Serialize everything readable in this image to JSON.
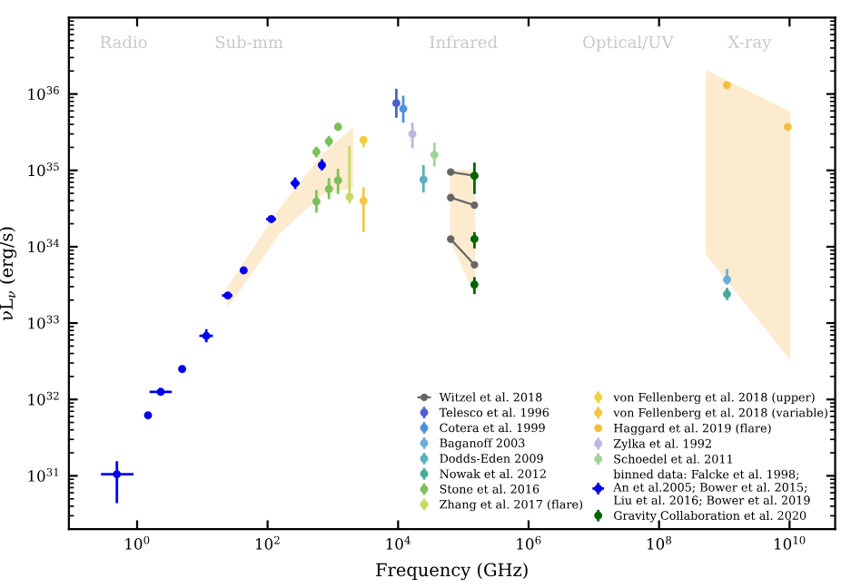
{
  "chart_data": {
    "type": "scatter",
    "xlabel": "Frequency (GHz)",
    "ylabel": "νL$_{ν}$ (erg/s)",
    "log": "xy",
    "marker": "circle",
    "legend": "bottom right",
    "grid": false,
    "xlim": [
      0.09,
      50000000000
    ],
    "ylim": [
      2e+30,
      1e+37
    ],
    "xticks": [
      {
        "value": 1,
        "label": "10$^{0}$"
      },
      {
        "value": 100,
        "label": "10$^{2}$"
      },
      {
        "value": 10000,
        "label": "10$^{4}$"
      },
      {
        "value": 1000000,
        "label": "10$^{6}$"
      },
      {
        "value": 100000000,
        "label": "10$^{8}$"
      },
      {
        "value": 10000000000,
        "label": "10$^{10}$"
      }
    ],
    "yticks": [
      {
        "value": 1e+31,
        "label": "10$^{31}$"
      },
      {
        "value": 1e+32,
        "label": "10$^{32}$"
      },
      {
        "value": 1e+33,
        "label": "10$^{33}$"
      },
      {
        "value": 1e+34,
        "label": "10$^{34}$"
      },
      {
        "value": 1e+35,
        "label": "10$^{35}$"
      },
      {
        "value": 1e+36,
        "label": "10$^{36}$"
      }
    ],
    "annotations": [
      "Radio",
      "Sub-mm",
      "Infrared",
      "Optical/UV",
      "X-ray"
    ],
    "series": [
      {
        "type": "area",
        "color": "#fdebd0",
        "x": [
          25,
          150,
          700,
          2000
        ],
        "values": [
          null,
          null,
          null,
          null
        ],
        "lower": [
          1.7e+33,
          1.5e+34,
          5e+34,
          6e+34
        ],
        "upper": [
          3e+33,
          3e+34,
          1.6e+35,
          3.5e+35
        ]
      },
      {
        "type": "area",
        "color": "#fdebd0",
        "x": [
          64000,
          148000
        ],
        "values": [
          null,
          null
        ],
        "lower": [
          1.2e+34,
          2.5e+33
        ],
        "upper": [
          1e+35,
          1e+35
        ]
      },
      {
        "type": "area",
        "color": "#fdebd0",
        "x": [
          530000000,
          10000000000
        ],
        "values": [
          null,
          null
        ],
        "lower": [
          8e+33,
          3.5e+32
        ],
        "upper": [
          2e+36,
          5.8e+35
        ]
      },
      {
        "type": "line",
        "name": "Witzel et al. 2018",
        "color": "#666666",
        "x": [
          64000,
          148000
        ],
        "values": [
          9.5e+34,
          8.5e+34
        ]
      },
      {
        "type": "line",
        "color": "#666666",
        "x": [
          64000,
          148000
        ],
        "values": [
          4.4e+34,
          3.5e+34
        ]
      },
      {
        "type": "line",
        "color": "#666666",
        "x": [
          64000,
          148000
        ],
        "values": [
          1.26e+34,
          5.8e+33
        ]
      },
      {
        "name": "Telesco et al. 1996",
        "color": "#4f5fd0",
        "x": [
          9400
        ],
        "values": [
          7.6e+35
        ],
        "errors": [
          [
            4.9e+35,
            1.17e+36
          ]
        ]
      },
      {
        "name": "Cotera et al. 1999",
        "color": "#4f8fe0",
        "x": [
          12000
        ],
        "values": [
          6.4e+35
        ],
        "errors": [
          [
            4.2e+35,
            9.5e+35
          ]
        ]
      },
      {
        "name": "Baganoff 2003",
        "color": "#6aaed6",
        "x": [
          1100000000
        ],
        "values": [
          3.7e+33
        ],
        "errors": [
          [
            3.2e+33,
            5.1e+33
          ]
        ]
      },
      {
        "name": "Dodds-Eden 2009",
        "color": "#5ab0c0",
        "x": [
          24500
        ],
        "values": [
          7.6e+34
        ],
        "errors": [
          [
            5.1e+34,
            1.17e+35
          ]
        ]
      },
      {
        "name": "Nowak et al. 2012",
        "color": "#48a89a",
        "x": [
          1100000000
        ],
        "values": [
          2.4e+33
        ],
        "errors": [
          [
            2e+33,
            2.9e+33
          ]
        ]
      },
      {
        "name": "Stone et al. 2016",
        "color": "#7cc05a",
        "x": [
          560,
          870,
          1200,
          560,
          870,
          1200
        ],
        "values": [
          1.75e+35,
          2.4e+35,
          3.7e+35,
          3.9e+34,
          5.7e+34,
          7.4e+34
        ],
        "errors": [
          [
            1.48e+35,
            2.04e+35
          ],
          [
            2.04e+35,
            2.82e+35
          ],
          [
            3.3e+35,
            4.2e+35
          ],
          [
            2.8e+34,
            5.5e+34
          ],
          [
            4.2e+34,
            7.9e+34
          ],
          [
            4.9e+34,
            1.05e+35
          ]
        ]
      },
      {
        "name": "Zhang et al. 2017 (flare)",
        "color": "#c8d860",
        "x": [
          1800
        ],
        "values": [
          4.5e+34
        ],
        "errors": [
          [
            3.7e+34,
            2.1e+35
          ]
        ]
      },
      {
        "name": "von Fellenberg et al. 2018 (upper)",
        "color": "#f0d040",
        "x": [
          2950
        ],
        "values": [
          2.5e+35
        ],
        "errors": [
          [
            2e+35,
            2.7e+35
          ]
        ]
      },
      {
        "name": "von Fellenberg et al. 2018 (variable)",
        "color": "#f5c842",
        "x": [
          2950
        ],
        "values": [
          4e+34
        ],
        "errors": [
          [
            1.55e+34,
            6e+34
          ]
        ]
      },
      {
        "name": "Haggard et al. 2019 (flare)",
        "color": "#f2c040",
        "x": [
          1100000000,
          9400000000
        ],
        "values": [
          1.3e+36,
          3.7e+35
        ]
      },
      {
        "name": "Zylka et al. 1992",
        "color": "#c0b4e0",
        "x": [
          16600
        ],
        "values": [
          3e+35
        ],
        "errors": [
          [
            1.95e+35,
            4.2e+35
          ]
        ]
      },
      {
        "name": "Schoedel et al. 2011",
        "color": "#9fd49a",
        "x": [
          36000
        ],
        "values": [
          1.6e+35
        ],
        "errors": [
          [
            1.12e+35,
            2.3e+35
          ]
        ]
      },
      {
        "name": "binned data: Falcke et al. 1998;\nAn et al.2005; Bower et al. 2015;\nLiu et al. 2016; Bower et al. 2019",
        "color": "#0000ee",
        "x": [
          0.49,
          1.47,
          2.3,
          4.9,
          11.5,
          24.5,
          43,
          114,
          265,
          680
        ],
        "values": [
          1.05e+31,
          6.2e+31,
          1.26e+32,
          2.5e+32,
          6.8e+32,
          2.3e+33,
          4.9e+33,
          2.3e+34,
          6.8e+34,
          1.17e+35
        ],
        "xerrors": [
          [
            0.28,
            0.88
          ],
          null,
          [
            1.55,
            3.4
          ],
          null,
          [
            9,
            14.5
          ],
          [
            20,
            29
          ],
          null,
          [
            95,
            135
          ],
          [
            225,
            310
          ],
          [
            600,
            770
          ]
        ],
        "errors": [
          [
            4.4e+30,
            1.55e+31
          ],
          null,
          null,
          null,
          [
            5.6e+32,
            8.3e+32
          ],
          null,
          null,
          null,
          [
            5.7e+34,
            8.1e+34
          ],
          [
            1e+35,
            1.4e+35
          ]
        ]
      },
      {
        "name": "Gravity Collaboration et al. 2020",
        "color": "#006400",
        "x": [
          148000,
          148000,
          148000
        ],
        "values": [
          8.5e+34,
          1.26e+34,
          3.2e+33
        ],
        "errors": [
          [
            4.9e+34,
            1.26e+35
          ],
          [
            9.5e+33,
            1.55e+34
          ],
          [
            2.4e+33,
            4e+33
          ]
        ]
      }
    ]
  }
}
